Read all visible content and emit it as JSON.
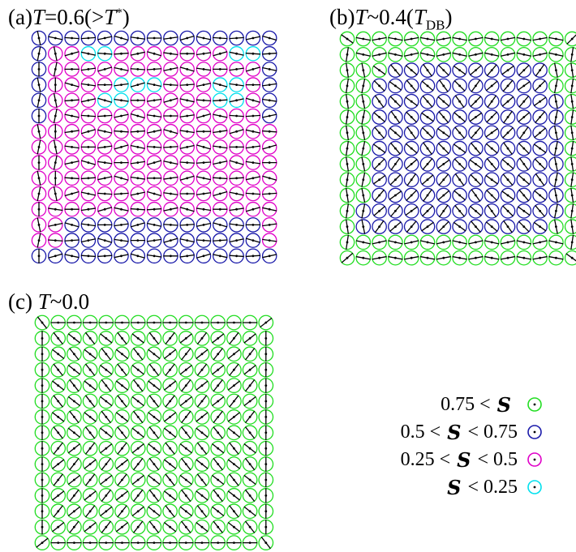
{
  "panels": [
    {
      "id": "a",
      "title_prefix": "(a)",
      "title_var": "T",
      "title_eq": "=0.6(>",
      "title_var2": "T",
      "title_sup": "*",
      "title_end": ")",
      "n": 15,
      "ordering_top": [
        "BBBBBBBBBBBBBBB",
        "BMMCCMMMMMMMCCB",
        "BMMMMMMMMMMMMMB",
        "BMMMMCCCMMMCCMB",
        "BMMMCCMMMMMCCMB",
        "BMMMMMMMMMMMMMB",
        "MMMMMMMMMMMMMMM",
        "MMMMMMMMMMMMMMM",
        "MMMMMMMMMMMMMMM",
        "MMMMMMMMMMMMMMM",
        "MMMMMMMMMMMMMMM",
        "MMMMMMMMMMMMMMM",
        "MMBBBBBBBBBBBBM",
        "MMBBBBBBBBBBBBM",
        "BBBBBBBBBBBBBBB"
      ],
      "director_mode": "disordered"
    },
    {
      "id": "b",
      "title_prefix": "(b)",
      "title_var": "T",
      "title_eq": "~0.4(",
      "title_var2": "T",
      "title_sub": "DB",
      "title_end": ")",
      "n": 15,
      "ordering_top": [
        "GGGGGGGGGGGGGGG",
        "GGGGGGGGGGGGGGG",
        "GGGBBBBBBBBBBGG",
        "GGBBBBBBBBBBBGG",
        "GGBBBBBBBBBBBBG",
        "GGBBBBBBBBBBBBG",
        "GGBBBBBBBBBBBBG",
        "GGBBBBBBBBBBBBG",
        "GGBBBBBBBBBBBBG",
        "GGBBBBBBBBBBBBG",
        "GGBBBBBBBBBBBBG",
        "GBBBBBBBBBBBBBG",
        "GBBBBBBBBBBBBGG",
        "GGGGGGGGGGGGGGG",
        "GGGGGGGGGGGGGGG"
      ],
      "director_mode": "partial"
    },
    {
      "id": "c",
      "title_prefix": "(c) ",
      "title_var": "T",
      "title_eq": "~0.0",
      "n": 15,
      "ordering_top": "all-G",
      "director_mode": "diagonal"
    }
  ],
  "legend": {
    "rows": [
      {
        "pre": "0.75 <",
        "sym": "S",
        "post": "",
        "color_key": "G"
      },
      {
        "pre": "0.5 <",
        "sym": "S",
        "post": "< 0.75",
        "color_key": "B"
      },
      {
        "pre": "0.25 <",
        "sym": "S",
        "post": "< 0.5",
        "color_key": "M"
      },
      {
        "pre": "",
        "sym": "S",
        "post": "< 0.25",
        "color_key": "C"
      }
    ]
  },
  "colors": {
    "G": "#22dd22",
    "B": "#1a1aaa",
    "M": "#e000c8",
    "C": "#00e0ee",
    "director": "#000000"
  }
}
